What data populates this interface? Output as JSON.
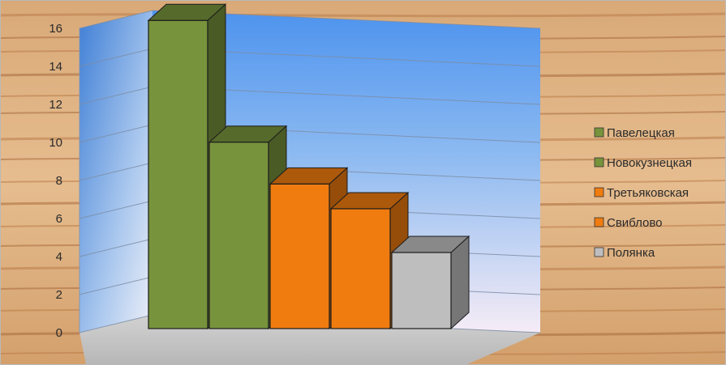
{
  "colors": {
    "green": "#77933c",
    "orange": "#f07c0f",
    "gray": "#bebebe",
    "wood_light": "#e9c49a",
    "wood_dark": "#a9683a",
    "wall_top": "#4f94ee",
    "wall_bottom": "#f3e9f6"
  },
  "chart_data": {
    "type": "bar",
    "style": "3d-column",
    "title": "",
    "xlabel": "",
    "ylabel": "",
    "ylim": [
      0,
      16
    ],
    "yticks": [
      0,
      2,
      4,
      6,
      8,
      10,
      12,
      14,
      16
    ],
    "grid": true,
    "legend_position": "right",
    "series": [
      {
        "name": "Павелецкая",
        "value": 16.2,
        "color": "#77933c"
      },
      {
        "name": "Новокузнецкая",
        "value": 9.8,
        "color": "#77933c"
      },
      {
        "name": "Третьяковская",
        "value": 7.6,
        "color": "#f07c0f"
      },
      {
        "name": "Свиблово",
        "value": 6.3,
        "color": "#f07c0f"
      },
      {
        "name": "Полянка",
        "value": 4.0,
        "color": "#bebebe"
      }
    ]
  }
}
